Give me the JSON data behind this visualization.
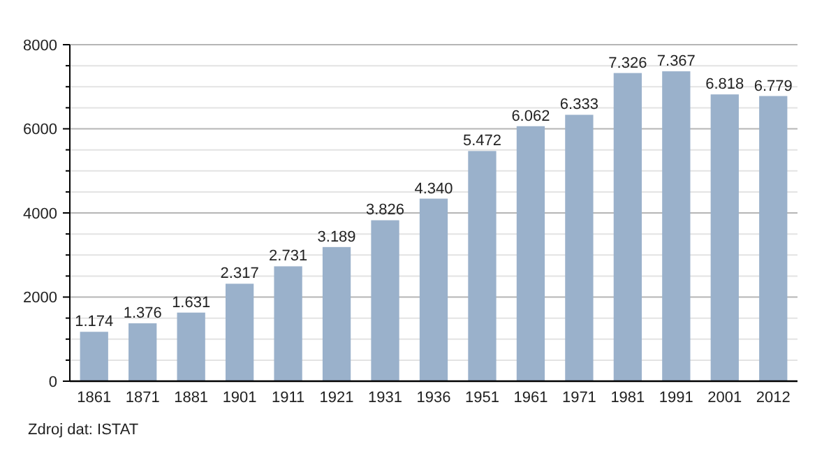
{
  "chart_data": {
    "type": "bar",
    "categories": [
      "1861",
      "1871",
      "1881",
      "1901",
      "1911",
      "1921",
      "1931",
      "1936",
      "1951",
      "1961",
      "1971",
      "1981",
      "1991",
      "2001",
      "2012"
    ],
    "values": [
      1174,
      1376,
      1631,
      2317,
      2731,
      3189,
      3826,
      4340,
      5472,
      6062,
      6333,
      7326,
      7367,
      6818,
      6779
    ],
    "value_labels": [
      "1.174",
      "1.376",
      "1.631",
      "2.317",
      "2.731",
      "3.189",
      "3.826",
      "4.340",
      "5.472",
      "6.062",
      "6.333",
      "7.326",
      "7.367",
      "6.818",
      "6.779"
    ],
    "color": "#9ab1cb",
    "ylim": [
      0,
      8000
    ],
    "yticks": [
      0,
      {
        "value": 500,
        "label": null
      },
      {
        "value": 1000,
        "label": null
      },
      {
        "value": 1500,
        "label": null
      },
      2000,
      {
        "value": 2500,
        "label": null
      },
      {
        "value": 3000,
        "label": null
      },
      {
        "value": 3500,
        "label": null
      },
      4000,
      {
        "value": 4500,
        "label": null
      },
      {
        "value": 5000,
        "label": null
      },
      {
        "value": 5500,
        "label": null
      },
      6000,
      {
        "value": 6500,
        "label": null
      },
      {
        "value": 7000,
        "label": null
      },
      {
        "value": 7500,
        "label": null
      },
      8000
    ],
    "grid": "y",
    "annotations": [
      "Zdroj dat: ISTAT"
    ]
  }
}
